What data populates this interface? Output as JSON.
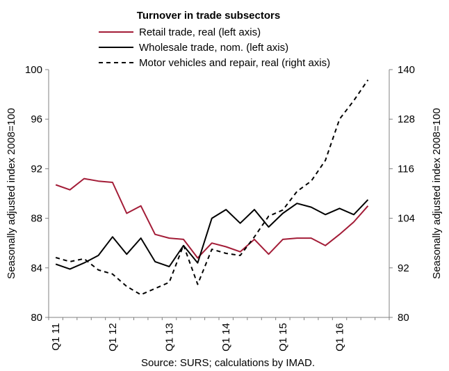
{
  "chart_data": {
    "type": "line",
    "title": "Turnover in trade subsectors",
    "source": "Source: SURS; calculations by IMAD.",
    "x": [
      "Q1 11",
      "Q2 11",
      "Q3 11",
      "Q4 11",
      "Q1 12",
      "Q2 12",
      "Q3 12",
      "Q4 12",
      "Q1 13",
      "Q2 13",
      "Q3 13",
      "Q4 13",
      "Q1 14",
      "Q2 14",
      "Q3 14",
      "Q4 14",
      "Q1 15",
      "Q2 15",
      "Q3 15",
      "Q4 15",
      "Q1 16",
      "Q2 16",
      "Q3 16",
      "Q4 16"
    ],
    "x_tick_labels": [
      "Q1 11",
      "Q1 12",
      "Q1 13",
      "Q1 14",
      "Q1 15",
      "Q1 16"
    ],
    "ylabel": "Seasonally adjusted index 2008=100",
    "ylim": [
      80,
      100
    ],
    "y_ticks": [
      80,
      84,
      88,
      92,
      96,
      100
    ],
    "y2label": "Seasonally adjusted index 2008=100",
    "y2lim": [
      80,
      140
    ],
    "y2_ticks": [
      80,
      92,
      104,
      116,
      128,
      140
    ],
    "legend_position": "top",
    "grid": false,
    "series": [
      {
        "name": "Retail trade, real (left axis)",
        "axis": "left",
        "color": "#a31c37",
        "style": "solid",
        "values": [
          90.7,
          90.3,
          91.2,
          91.0,
          90.9,
          88.4,
          89.0,
          86.7,
          86.4,
          86.3,
          84.8,
          86.0,
          85.7,
          85.3,
          86.3,
          85.1,
          86.3,
          86.4,
          86.4,
          85.8,
          86.7,
          87.7,
          89.0,
          null
        ]
      },
      {
        "name": "Wholesale trade, nom. (left axis)",
        "axis": "left",
        "color": "#000000",
        "style": "solid",
        "values": [
          84.3,
          83.9,
          84.4,
          85.0,
          86.5,
          85.1,
          86.4,
          84.5,
          84.1,
          85.8,
          84.4,
          88.0,
          88.7,
          87.6,
          88.7,
          87.3,
          88.4,
          89.2,
          88.9,
          88.3,
          88.8,
          88.3,
          89.5,
          null
        ]
      },
      {
        "name": "Motor vehicles and repair, real (right axis)",
        "axis": "right",
        "color": "#000000",
        "style": "dashed",
        "values": [
          94.5,
          93.5,
          94.2,
          91.5,
          90.5,
          87.5,
          85.5,
          87.0,
          88.5,
          97.5,
          88.0,
          96.5,
          95.5,
          95.0,
          99.5,
          104.5,
          106.0,
          110.5,
          113.0,
          118.0,
          128.0,
          132.5,
          137.5,
          null
        ]
      }
    ]
  }
}
